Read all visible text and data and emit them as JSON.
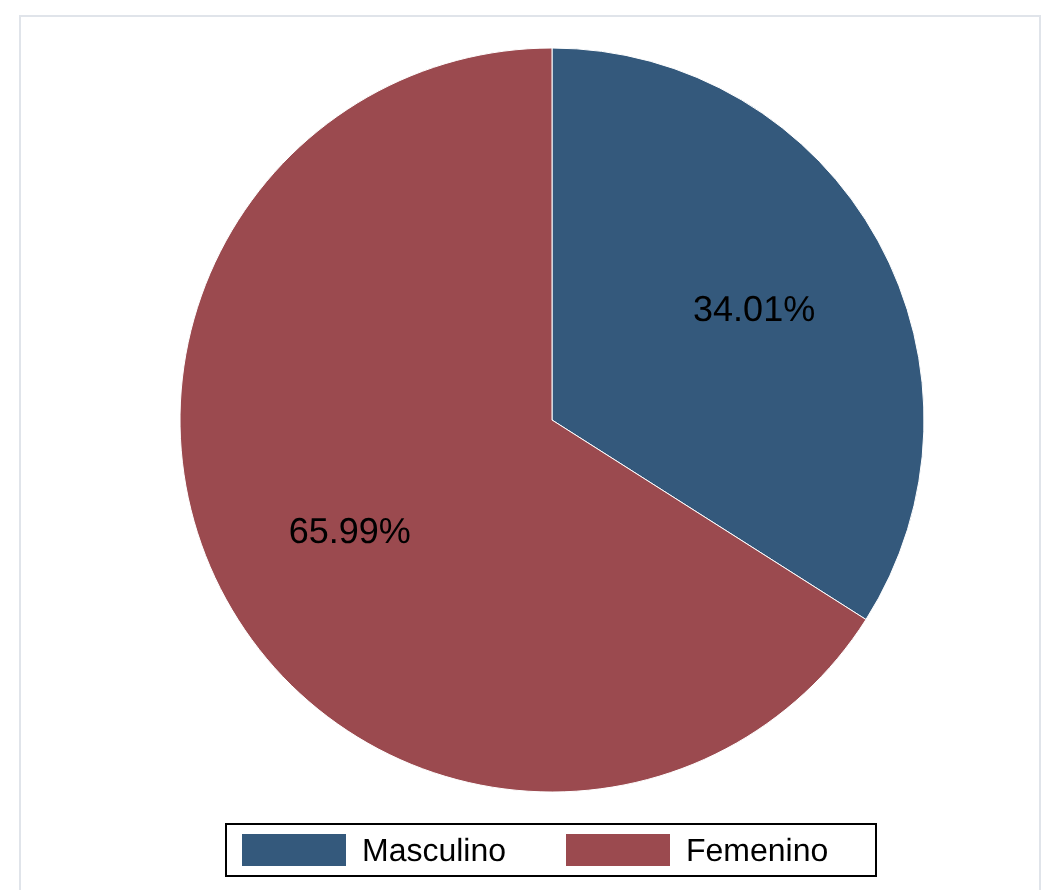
{
  "chart_data": {
    "type": "pie",
    "categories": [
      "Masculino",
      "Femenino"
    ],
    "values": [
      34.01,
      65.99
    ],
    "colors": [
      "#34597c",
      "#9b4a4f"
    ],
    "value_labels": [
      "34.01%",
      "65.99%"
    ],
    "legend": "bottom"
  }
}
